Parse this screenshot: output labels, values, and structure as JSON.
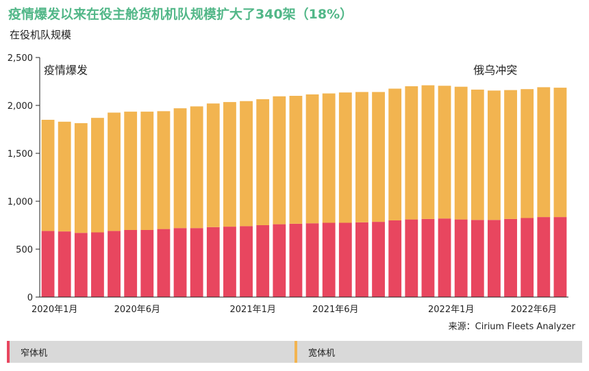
{
  "header": {
    "title": "疫情爆发以来在役主舱货机机队规模扩大了340架（18%）",
    "subtitle": "在役机队规模"
  },
  "source": "来源：Cirium Fleets Analyzer",
  "colors": {
    "narrowbody": "#e8465f",
    "widebody": "#f2b450",
    "title": "#52b788",
    "axis": "#222222",
    "legend_bg": "#d9d9d9"
  },
  "legend": [
    {
      "label": "窄体机",
      "color": "#e8465f"
    },
    {
      "label": "宽体机",
      "color": "#f2b450"
    }
  ],
  "chart_data": {
    "type": "bar",
    "stacked": true,
    "ylim": [
      0,
      2500
    ],
    "yticks": [
      "0",
      "500",
      "1,000",
      "1,500",
      "2,000",
      "2,500"
    ],
    "ytick_values": [
      0,
      500,
      1000,
      1500,
      2000,
      2500
    ],
    "xtick_labels": [
      {
        "index": 0,
        "label": "2020年1月"
      },
      {
        "index": 5,
        "label": "2020年6月"
      },
      {
        "index": 12,
        "label": "2021年1月"
      },
      {
        "index": 17,
        "label": "2021年6月"
      },
      {
        "index": 24,
        "label": "2022年1月"
      },
      {
        "index": 29,
        "label": "2022年6月"
      }
    ],
    "annotations": [
      {
        "text": "疫情爆发",
        "index": 0
      },
      {
        "text": "俄乌冲突",
        "index": 26
      }
    ],
    "categories": [
      "2020-01",
      "2020-02",
      "2020-03",
      "2020-04",
      "2020-05",
      "2020-06",
      "2020-07",
      "2020-08",
      "2020-09",
      "2020-10",
      "2020-11",
      "2020-12",
      "2021-01",
      "2021-02",
      "2021-03",
      "2021-04",
      "2021-05",
      "2021-06",
      "2021-07",
      "2021-08",
      "2021-09",
      "2021-10",
      "2021-11",
      "2021-12",
      "2022-01",
      "2022-02",
      "2022-03",
      "2022-04",
      "2022-05",
      "2022-06",
      "2022-07",
      "2022-08"
    ],
    "series": [
      {
        "name": "窄体机",
        "color": "#e8465f",
        "values": [
          690,
          685,
          670,
          675,
          690,
          700,
          700,
          710,
          720,
          720,
          730,
          735,
          740,
          750,
          760,
          765,
          770,
          775,
          775,
          780,
          785,
          800,
          810,
          815,
          820,
          810,
          805,
          805,
          815,
          825,
          835,
          835
        ]
      },
      {
        "name": "宽体机",
        "color": "#f2b450",
        "values": [
          1160,
          1145,
          1145,
          1195,
          1235,
          1235,
          1235,
          1230,
          1250,
          1270,
          1290,
          1300,
          1305,
          1315,
          1335,
          1335,
          1345,
          1350,
          1360,
          1360,
          1355,
          1375,
          1390,
          1395,
          1385,
          1385,
          1360,
          1350,
          1345,
          1345,
          1355,
          1350
        ]
      }
    ]
  }
}
